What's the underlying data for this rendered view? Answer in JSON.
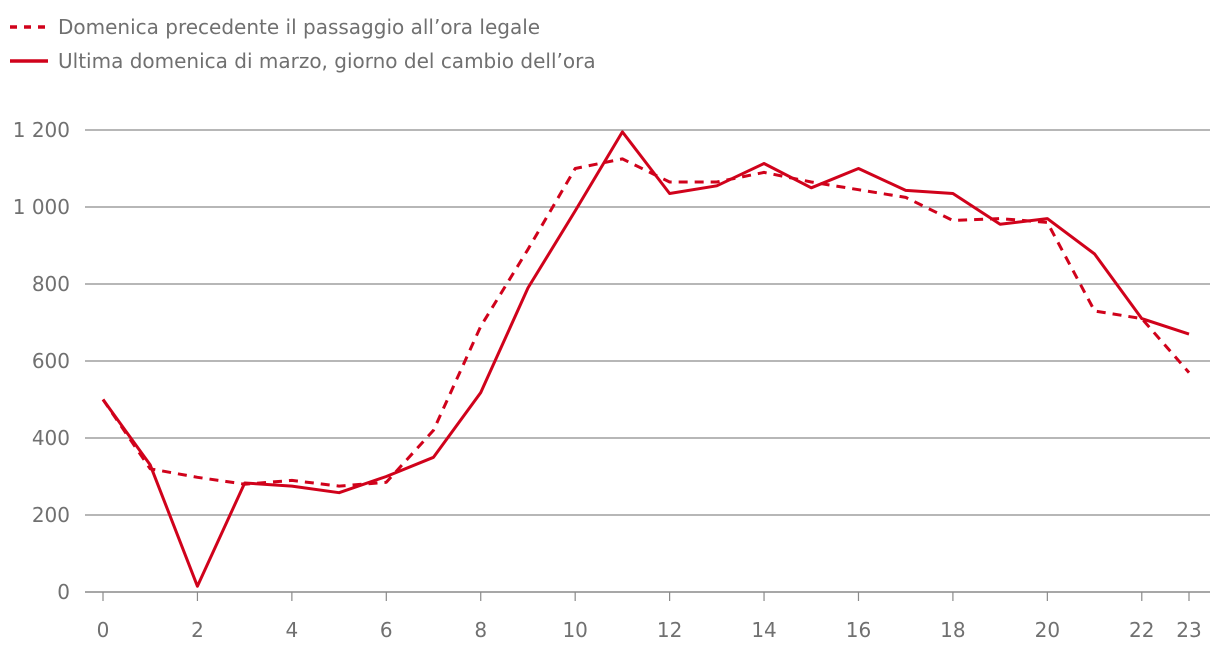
{
  "chart_data": {
    "type": "line",
    "title": "",
    "xlabel": "",
    "ylabel": "",
    "x": [
      0,
      1,
      2,
      3,
      4,
      5,
      6,
      7,
      8,
      9,
      10,
      11,
      12,
      13,
      14,
      15,
      16,
      17,
      18,
      19,
      20,
      21,
      22,
      23
    ],
    "x_ticks": [
      "0",
      "2",
      "4",
      "6",
      "8",
      "10",
      "12",
      "14",
      "16",
      "18",
      "20",
      "22",
      "23"
    ],
    "x_tick_values": [
      0,
      2,
      4,
      6,
      8,
      10,
      12,
      14,
      16,
      18,
      20,
      22,
      23
    ],
    "y_ticks": [
      "0",
      "200",
      "400",
      "600",
      "800",
      "1 000",
      "1 200"
    ],
    "y_tick_values": [
      0,
      200,
      400,
      600,
      800,
      1000,
      1200
    ],
    "ylim": [
      0,
      1200
    ],
    "xlim": [
      0,
      23
    ],
    "grid": true,
    "legend_position": "top-left",
    "color": "#d0021b",
    "series": [
      {
        "name": "Domenica precedente il passaggio all’ora legale",
        "style": "dashed",
        "values": [
          500,
          320,
          298,
          280,
          290,
          275,
          285,
          420,
          690,
          890,
          1100,
          1125,
          1065,
          1065,
          1090,
          1065,
          1045,
          1025,
          965,
          970,
          960,
          730,
          710,
          570
        ]
      },
      {
        "name": "Ultima domenica di marzo, giorno del cambio dell’ora",
        "style": "solid",
        "values": [
          500,
          330,
          15,
          283,
          275,
          258,
          300,
          350,
          518,
          790,
          990,
          1195,
          1035,
          1055,
          1113,
          1050,
          1100,
          1043,
          1035,
          955,
          970,
          878,
          710,
          670
        ]
      }
    ]
  }
}
